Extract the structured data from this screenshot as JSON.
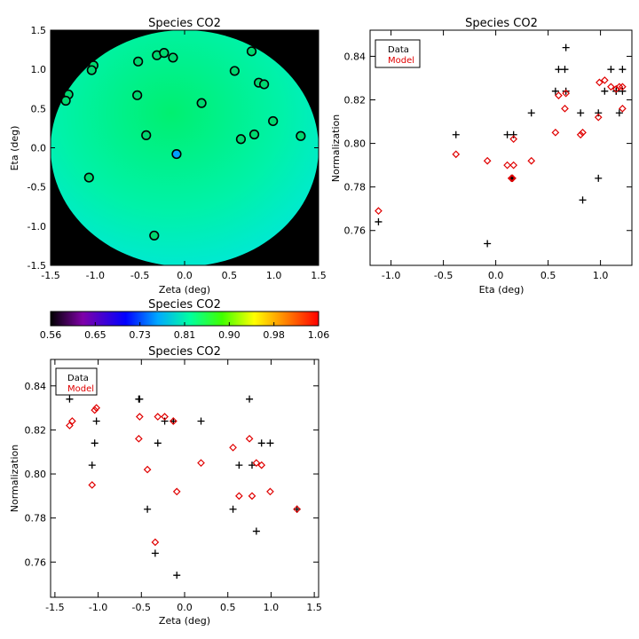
{
  "chart_data": [
    {
      "id": "zeta_eta_map",
      "type": "scatter",
      "title": "Species CO2",
      "xlabel": "Zeta (deg)",
      "ylabel": "Eta (deg)",
      "xlim": [
        -1.5,
        1.5
      ],
      "ylim": [
        -1.5,
        1.5
      ],
      "xticks": [
        "-1.5",
        "-1.0",
        "-0.5",
        "0.0",
        "0.5",
        "1.0",
        "1.5"
      ],
      "yticks": [
        "-1.5",
        "-1.0",
        "-0.5",
        "0.0",
        "0.5",
        "1.0",
        "1.5"
      ],
      "background": "black outside circular field of view, color-mapped model normalization inside",
      "points": [
        {
          "zeta": -1.3,
          "eta": 0.68,
          "color": "#00d870"
        },
        {
          "zeta": -1.33,
          "eta": 0.6,
          "color": "#00d870"
        },
        {
          "zeta": -1.02,
          "eta": 1.05,
          "color": "#00d870"
        },
        {
          "zeta": -1.04,
          "eta": 0.99,
          "color": "#00d870"
        },
        {
          "zeta": -1.07,
          "eta": -0.38,
          "color": "#00d870"
        },
        {
          "zeta": -0.52,
          "eta": 1.1,
          "color": "#00d870"
        },
        {
          "zeta": -0.53,
          "eta": 0.67,
          "color": "#00d870"
        },
        {
          "zeta": -0.43,
          "eta": 0.16,
          "color": "#00d870"
        },
        {
          "zeta": -0.31,
          "eta": 1.18,
          "color": "#00d870"
        },
        {
          "zeta": -0.23,
          "eta": 1.21,
          "color": "#00d870"
        },
        {
          "zeta": -0.13,
          "eta": 1.15,
          "color": "#00d870"
        },
        {
          "zeta": -0.34,
          "eta": -1.12,
          "color": "#00d870"
        },
        {
          "zeta": -0.09,
          "eta": -0.08,
          "color": "#00a0ff"
        },
        {
          "zeta": 0.19,
          "eta": 0.57,
          "color": "#00d870"
        },
        {
          "zeta": 0.56,
          "eta": 0.98,
          "color": "#00d870"
        },
        {
          "zeta": 0.63,
          "eta": 0.11,
          "color": "#00d870"
        },
        {
          "zeta": 0.75,
          "eta": 1.23,
          "color": "#00d870"
        },
        {
          "zeta": 0.83,
          "eta": 0.83,
          "color": "#00d870"
        },
        {
          "zeta": 0.89,
          "eta": 0.81,
          "color": "#00d870"
        },
        {
          "zeta": 0.78,
          "eta": 0.17,
          "color": "#00d870"
        },
        {
          "zeta": 0.99,
          "eta": 0.34,
          "color": "#00d870"
        },
        {
          "zeta": 1.3,
          "eta": 0.15,
          "color": "#00d870"
        }
      ]
    },
    {
      "id": "colorbar",
      "type": "heatmap",
      "title": "Species CO2",
      "range": [
        0.56,
        1.06
      ],
      "ticks": [
        "0.56",
        "0.65",
        "0.73",
        "0.81",
        "0.90",
        "0.98",
        "1.06"
      ],
      "colormap": [
        "#000000",
        "#7f00a8",
        "#0000ff",
        "#00a8ff",
        "#00ffa0",
        "#40ff00",
        "#ffff00",
        "#ff8000",
        "#ff0000"
      ]
    },
    {
      "id": "eta_normalization",
      "type": "scatter",
      "title": "Species CO2",
      "xlabel": "Eta (deg)",
      "ylabel": "Normalization",
      "xlim": [
        -1.2,
        1.3
      ],
      "ylim": [
        0.744,
        0.852
      ],
      "xticks": [
        -1.0,
        -0.5,
        0.0,
        0.5,
        1.0
      ],
      "xtick_labels": [
        "-1.0",
        "-0.5",
        "0.0",
        "0.5",
        "1.0"
      ],
      "yticks": [
        0.76,
        0.78,
        0.8,
        0.82,
        0.84
      ],
      "ytick_labels": [
        "0.76",
        "0.78",
        "0.80",
        "0.82",
        "0.84"
      ],
      "legend": {
        "placement": "top-left",
        "entries": [
          "Data",
          "Model"
        ]
      },
      "series": [
        {
          "name": "Data",
          "marker": "plus",
          "color": "#000000",
          "x": [
            -1.12,
            -0.38,
            -0.08,
            0.11,
            0.15,
            0.16,
            0.17,
            0.34,
            0.57,
            0.6,
            0.66,
            0.67,
            0.67,
            0.81,
            0.83,
            0.98,
            0.98,
            1.04,
            1.1,
            1.15,
            1.15,
            1.18,
            1.21,
            1.21
          ],
          "y": [
            0.764,
            0.804,
            0.754,
            0.804,
            0.784,
            0.784,
            0.804,
            0.814,
            0.824,
            0.834,
            0.834,
            0.844,
            0.824,
            0.814,
            0.774,
            0.784,
            0.814,
            0.824,
            0.834,
            0.824,
            0.824,
            0.814,
            0.834,
            0.824
          ]
        },
        {
          "name": "Model",
          "marker": "diamond",
          "color": "#e00000",
          "x": [
            -1.12,
            -0.38,
            -0.08,
            0.11,
            0.15,
            0.16,
            0.17,
            0.17,
            0.34,
            0.57,
            0.6,
            0.66,
            0.67,
            0.81,
            0.83,
            0.98,
            0.99,
            1.04,
            1.1,
            1.15,
            1.18,
            1.21,
            1.21
          ],
          "y": [
            0.769,
            0.795,
            0.792,
            0.79,
            0.784,
            0.784,
            0.79,
            0.802,
            0.792,
            0.805,
            0.822,
            0.816,
            0.823,
            0.804,
            0.805,
            0.812,
            0.828,
            0.829,
            0.826,
            0.825,
            0.826,
            0.826,
            0.816
          ]
        }
      ]
    },
    {
      "id": "zeta_normalization",
      "type": "scatter",
      "title": "Species CO2",
      "xlabel": "Zeta (deg)",
      "ylabel": "Normalization",
      "xlim": [
        -1.55,
        1.55
      ],
      "ylim": [
        0.744,
        0.852
      ],
      "xticks": [
        -1.5,
        -1.0,
        -0.5,
        0.0,
        0.5,
        1.0,
        1.5
      ],
      "xtick_labels": [
        "-1.5",
        "-1.0",
        "-0.5",
        "0.0",
        "0.5",
        "1.0",
        "1.5"
      ],
      "yticks": [
        0.76,
        0.78,
        0.8,
        0.82,
        0.84
      ],
      "ytick_labels": [
        "0.76",
        "0.78",
        "0.80",
        "0.82",
        "0.84"
      ],
      "legend": {
        "placement": "top-left",
        "entries": [
          "Data",
          "Model"
        ]
      },
      "series": [
        {
          "name": "Data",
          "marker": "plus",
          "color": "#000000",
          "x": [
            -1.3,
            -1.33,
            -1.02,
            -1.04,
            -1.07,
            -0.52,
            -0.53,
            -0.43,
            -0.31,
            -0.23,
            -0.13,
            -0.34,
            -0.09,
            0.19,
            0.56,
            0.63,
            0.75,
            0.83,
            0.89,
            0.78,
            0.99,
            1.3
          ],
          "y": [
            0.844,
            0.834,
            0.824,
            0.814,
            0.804,
            0.834,
            0.834,
            0.784,
            0.814,
            0.824,
            0.824,
            0.764,
            0.754,
            0.824,
            0.784,
            0.804,
            0.834,
            0.774,
            0.814,
            0.804,
            0.814,
            0.784
          ]
        },
        {
          "name": "Model",
          "marker": "diamond",
          "color": "#e00000",
          "x": [
            -1.3,
            -1.33,
            -1.02,
            -1.04,
            -1.07,
            -0.52,
            -0.53,
            -0.43,
            -0.31,
            -0.23,
            -0.13,
            -0.34,
            -0.09,
            0.19,
            0.56,
            0.63,
            0.75,
            0.83,
            0.89,
            0.78,
            0.99,
            1.3
          ],
          "y": [
            0.824,
            0.822,
            0.83,
            0.829,
            0.795,
            0.826,
            0.816,
            0.802,
            0.826,
            0.826,
            0.824,
            0.769,
            0.792,
            0.805,
            0.812,
            0.79,
            0.816,
            0.805,
            0.804,
            0.79,
            0.792,
            0.784
          ]
        }
      ]
    }
  ]
}
